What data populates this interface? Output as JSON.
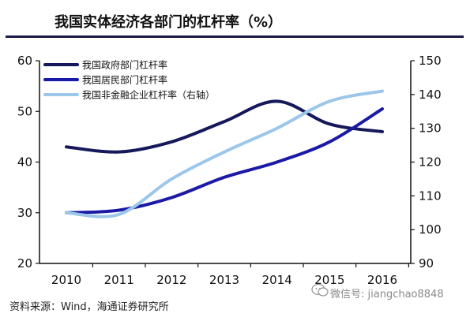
{
  "title": "我国实体经济各部门的杠杆率（%）",
  "source": "资料来源：Wind，海通证券研究所",
  "watermark": "微信号: jiangchao8848",
  "chart_data": {
    "type": "line",
    "categories": [
      "2010",
      "2011",
      "2012",
      "2013",
      "2014",
      "2015",
      "2016"
    ],
    "y_left": {
      "ticks": [
        20,
        30,
        40,
        50,
        60
      ],
      "lim": [
        20,
        60
      ]
    },
    "y_right": {
      "ticks": [
        90,
        100,
        110,
        120,
        130,
        140,
        150
      ],
      "lim": [
        90,
        150
      ]
    },
    "grid": false,
    "legend_position": "top-left",
    "series": [
      {
        "name": "我国政府部门杠杆率",
        "axis": "left",
        "color": "#15185a",
        "values": [
          43,
          42,
          44,
          48,
          52,
          47.5,
          46
        ]
      },
      {
        "name": "我国居民部门杠杆率",
        "axis": "left",
        "color": "#1a1aa6",
        "values": [
          30,
          30.5,
          33,
          37,
          40,
          44,
          50.5
        ]
      },
      {
        "name": "我国非金融企业杠杆率（右轴）",
        "axis": "right",
        "color": "#9cc6ea",
        "values": [
          105,
          104.5,
          115,
          123,
          130,
          138,
          141
        ]
      }
    ]
  }
}
